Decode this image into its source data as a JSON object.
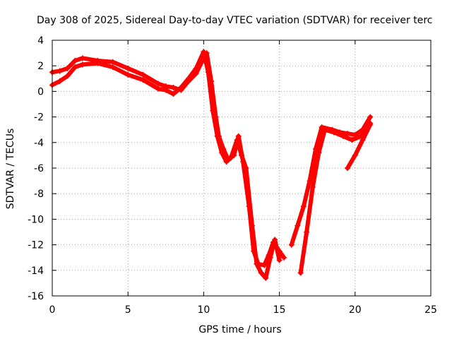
{
  "chart_data": {
    "type": "scatter",
    "title": "Day 308 of 2025, Sidereal Day-to-day VTEC variation (SDTVAR) for receiver terc",
    "xlabel": "GPS time / hours",
    "ylabel": "SDTVAR / TECUs",
    "xlim": [
      0,
      25
    ],
    "ylim": [
      -16,
      4
    ],
    "xticks": [
      "0",
      "5",
      "10",
      "15",
      "20",
      "25"
    ],
    "yticks": [
      "4",
      "2",
      "0",
      "-2",
      "-4",
      "-6",
      "-8",
      "-10",
      "-12",
      "-14",
      "-16"
    ],
    "grid": true,
    "marker": "+",
    "series": [
      {
        "color": "#ff0000",
        "tracks": [
          {
            "x": [
              0.0,
              0.5,
              1.0,
              1.5,
              2.0,
              3.0,
              4.0,
              5.0,
              6.0,
              7.0,
              7.5,
              8.0,
              8.5,
              9.0,
              9.5,
              10.0,
              10.2,
              10.5,
              10.8,
              11.0,
              11.3,
              11.6,
              12.0,
              12.3,
              12.6,
              13.0,
              13.3,
              13.6,
              14.0,
              14.3,
              14.6,
              15.0,
              15.3
            ],
            "y": [
              1.5,
              1.6,
              1.8,
              2.4,
              2.6,
              2.4,
              2.3,
              1.8,
              1.3,
              0.6,
              0.4,
              0.3,
              0.1,
              0.8,
              1.4,
              2.6,
              3.0,
              0.8,
              -2.0,
              -3.5,
              -4.5,
              -5.3,
              -5.0,
              -3.5,
              -5.5,
              -9.0,
              -12.5,
              -13.5,
              -13.6,
              -12.8,
              -11.8,
              -12.5,
              -13.0
            ]
          },
          {
            "x": [
              0.0,
              0.5,
              1.0,
              1.5,
              2.0,
              3.0,
              4.0,
              5.0,
              6.0,
              7.0,
              7.5,
              8.0,
              8.5,
              9.0,
              9.5,
              10.0,
              10.3,
              10.6,
              10.9,
              11.2,
              11.5,
              11.8,
              12.2,
              12.5,
              12.8,
              13.2,
              13.5,
              13.8,
              14.1,
              14.4,
              14.7,
              15.0
            ],
            "y": [
              0.5,
              0.8,
              1.2,
              1.9,
              2.1,
              2.2,
              1.9,
              1.3,
              0.9,
              0.2,
              0.1,
              -0.2,
              0.3,
              1.0,
              1.8,
              3.1,
              1.5,
              -1.5,
              -3.5,
              -4.8,
              -5.5,
              -5.2,
              -3.8,
              -5.0,
              -6.0,
              -10.5,
              -13.5,
              -14.2,
              -14.6,
              -13.0,
              -11.6,
              -13.2
            ]
          },
          {
            "x": [
              15.8,
              16.2,
              16.6,
              17.0,
              17.4,
              17.8,
              18.5,
              19.0,
              19.5,
              20.0,
              20.5,
              21.0
            ],
            "y": [
              -12.0,
              -10.5,
              -9.0,
              -7.0,
              -4.5,
              -2.8,
              -3.0,
              -3.2,
              -3.3,
              -3.4,
              -3.0,
              -2.0
            ]
          },
          {
            "x": [
              16.4,
              16.8,
              17.2,
              17.6,
              18.0,
              18.6,
              19.2,
              19.8,
              20.4,
              21.0
            ],
            "y": [
              -14.2,
              -11.0,
              -7.5,
              -4.8,
              -3.0,
              -3.2,
              -3.5,
              -3.8,
              -3.5,
              -2.5
            ]
          },
          {
            "x": [
              19.5,
              20.0,
              20.5,
              21.0
            ],
            "y": [
              -6.0,
              -5.0,
              -3.8,
              -2.6
            ]
          }
        ]
      }
    ]
  }
}
